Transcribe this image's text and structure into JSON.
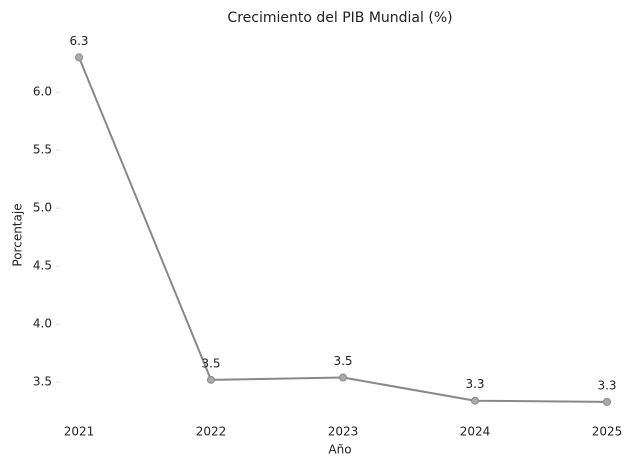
{
  "chart_data": {
    "type": "line",
    "title": "Crecimiento del PIB Mundial (%)",
    "x_label": "Año",
    "y_label": "Porcentaje",
    "categories": [
      "2021",
      "2022",
      "2023",
      "2024",
      "2025"
    ],
    "series": [
      {
        "name": "PIB",
        "color": "#888888",
        "values": [
          6.3,
          3.52,
          3.54,
          3.34,
          3.33
        ],
        "value_labels": [
          "6.3",
          "3.5",
          "3.5",
          "3.3",
          "3.3"
        ]
      }
    ],
    "ylim": [
      3.26,
      6.45
    ],
    "yticks": [
      3.5,
      {
        "value": 4,
        "label": "4.0"
      },
      4.5,
      {
        "value": 5,
        "label": "5.0"
      },
      5.5,
      {
        "value": 6,
        "label": "6.0"
      }
    ],
    "grid": false
  }
}
